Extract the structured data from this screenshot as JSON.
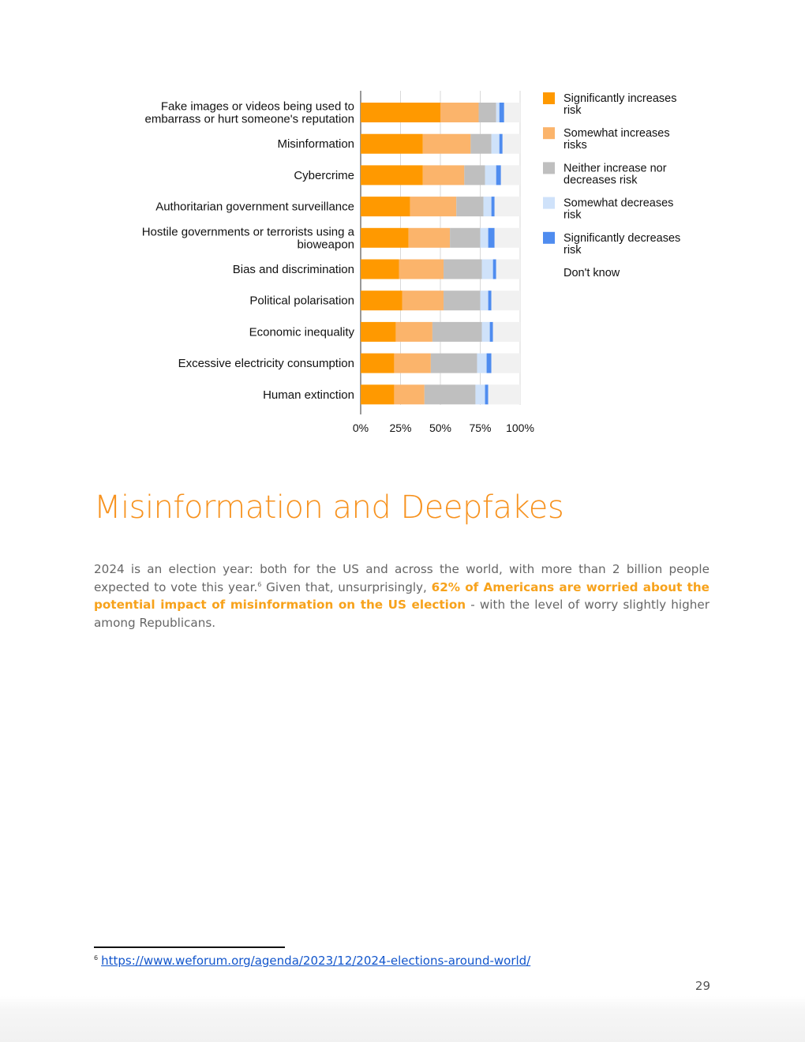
{
  "chart_data": {
    "type": "bar",
    "orientation": "horizontal",
    "stacked": true,
    "categories": [
      [
        "Fake images or videos being used to",
        "embarrass or hurt someone's reputation"
      ],
      [
        "Misinformation"
      ],
      [
        "Cybercrime"
      ],
      [
        "Authoritarian government surveillance"
      ],
      [
        "Hostile governments or terrorists using a",
        "bioweapon"
      ],
      [
        "Bias and discrimination"
      ],
      [
        "Political polarisation"
      ],
      [
        "Economic inequality"
      ],
      [
        "Excessive electricity consumption"
      ],
      [
        "Human extinction"
      ]
    ],
    "series": [
      {
        "name": [
          "Significantly increases",
          "risk"
        ],
        "color": "#ff9900",
        "values": [
          50,
          39,
          39,
          31,
          30,
          24,
          26,
          22,
          21,
          21
        ]
      },
      {
        "name": [
          "Somewhat increases",
          "risks"
        ],
        "color": "#fbb46b",
        "values": [
          24,
          30,
          26,
          29,
          26,
          28,
          26,
          23,
          23,
          19
        ]
      },
      {
        "name": [
          "Neither increase nor",
          "decreases risk"
        ],
        "color": "#bfbfbf",
        "values": [
          11,
          13,
          13,
          17,
          19,
          24,
          23,
          31,
          29,
          32
        ]
      },
      {
        "name": [
          "Somewhat decreases",
          "risk"
        ],
        "color": "#cfe2fa",
        "values": [
          2,
          5,
          7,
          5,
          5,
          7,
          5,
          5,
          6,
          6
        ]
      },
      {
        "name": [
          "Significantly decreases",
          "risk"
        ],
        "color": "#4f8cef",
        "values": [
          3,
          2,
          3,
          2,
          4,
          2,
          2,
          2,
          3,
          2
        ]
      },
      {
        "name": [
          "Don't know"
        ],
        "color": "#f1f1f1",
        "values": [
          10,
          11,
          12,
          16,
          16,
          15,
          18,
          17,
          18,
          20
        ]
      }
    ],
    "x_ticks": [
      "0%",
      "25%",
      "50%",
      "75%",
      "100%"
    ],
    "xlim": [
      0,
      100
    ],
    "grid": true,
    "legend_position": "right"
  },
  "section": {
    "heading": "Misinformation and Deepfakes",
    "para_intro": "2024 is an election year: both for the US and across the world, with more than 2 billion people expected to vote this year.",
    "footnote_ref": "6",
    "para_mid": " Given that, unsurprisingly, ",
    "para_highlight": "62% of Americans are worried about the potential impact of misinformation on the US election",
    "para_end": " - with the level of worry slightly higher among Republicans."
  },
  "footnote": {
    "number": "6",
    "link_text": "https://www.weforum.org/agenda/2023/12/2024-elections-around-world/"
  },
  "page_number": "29"
}
